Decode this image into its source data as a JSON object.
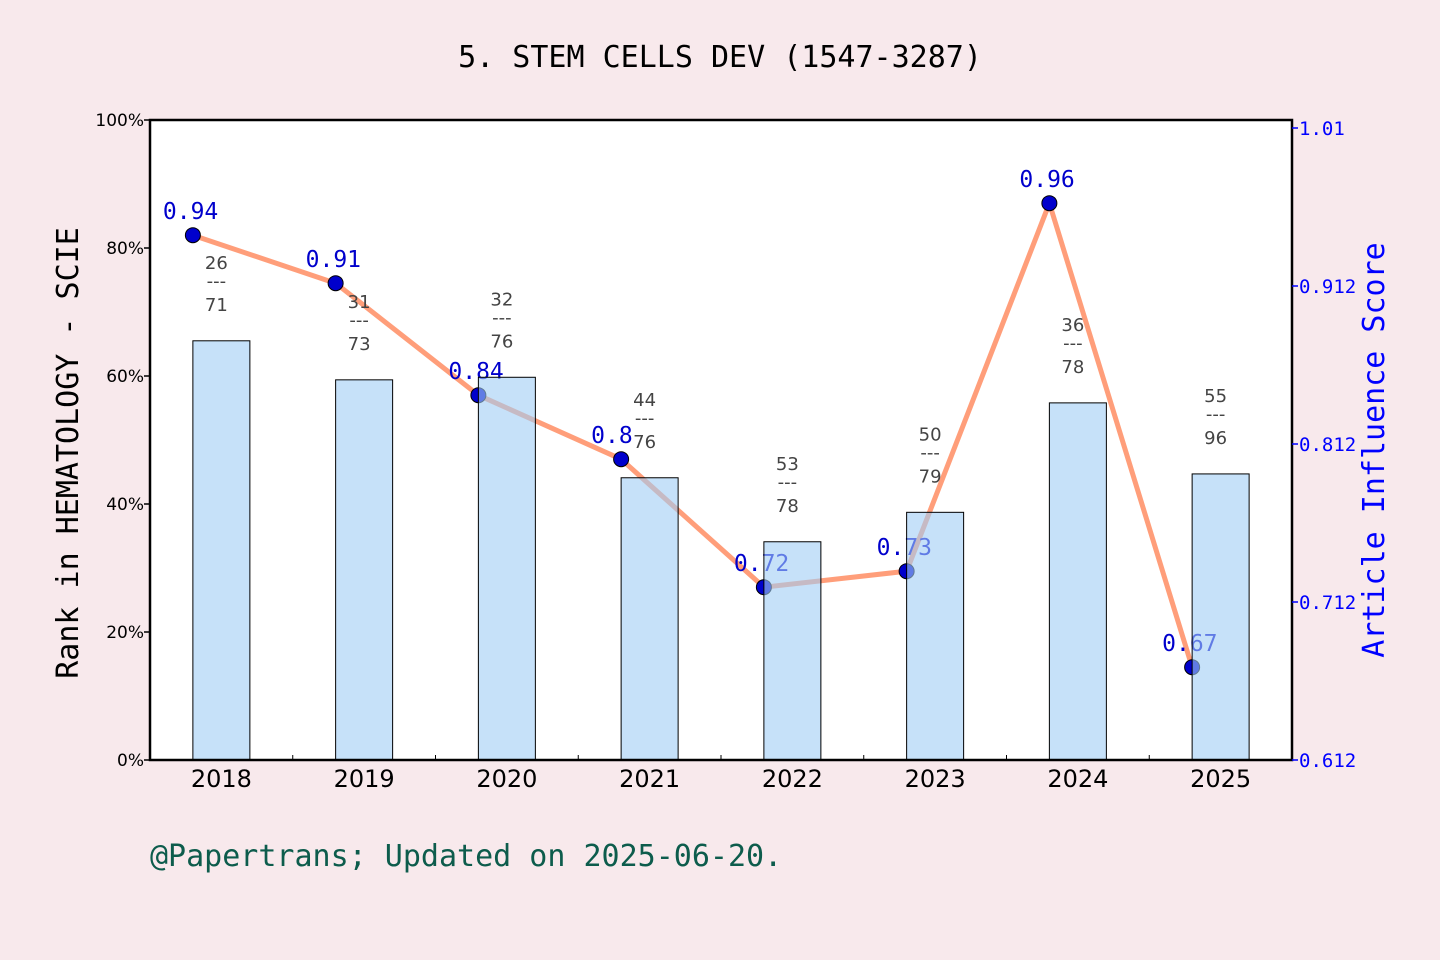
{
  "chart_data": {
    "type": "bar",
    "title": "5. STEM CELLS DEV (1547-3287)",
    "categories": [
      "2018",
      "2019",
      "2020",
      "2021",
      "2022",
      "2023",
      "2024",
      "2025"
    ],
    "ylabel": "Rank in HEMATOLOGY - SCIE",
    "ylabel_right": "Article Influence Score",
    "ylim": [
      0,
      100
    ],
    "yticks": [
      "0%",
      "20%",
      "40%",
      "60%",
      "80%",
      "100%"
    ],
    "ylim_right": [
      0.612,
      1.012
    ],
    "yticks_right": [
      "0.612",
      "0.712",
      "0.812",
      "0.912",
      "1.01"
    ],
    "bar_values": [
      65.5,
      59.4,
      59.8,
      44.1,
      34.1,
      38.7,
      55.8,
      44.7
    ],
    "ranks": [
      {
        "rank": "26",
        "total": "71"
      },
      {
        "rank": "31",
        "total": "73"
      },
      {
        "rank": "32",
        "total": "76"
      },
      {
        "rank": "44",
        "total": "76"
      },
      {
        "rank": "53",
        "total": "78"
      },
      {
        "rank": "50",
        "total": "79"
      },
      {
        "rank": "36",
        "total": "78"
      },
      {
        "rank": "55",
        "total": "96"
      }
    ],
    "line_values": [
      0.94,
      0.91,
      0.84,
      0.8,
      0.72,
      0.73,
      0.96,
      0.67
    ],
    "line_labels": [
      "0.94",
      "0.91",
      "0.84",
      "0.8",
      "0.72",
      "0.73",
      "0.96",
      "0.67"
    ],
    "grid": false,
    "colors": {
      "bar": "#c5e0f7",
      "line": "#ff9e7a",
      "marker": "#0000cc",
      "right_axis": "#0000ff"
    }
  },
  "footer": "@Papertrans; Updated on 2025-06-20."
}
